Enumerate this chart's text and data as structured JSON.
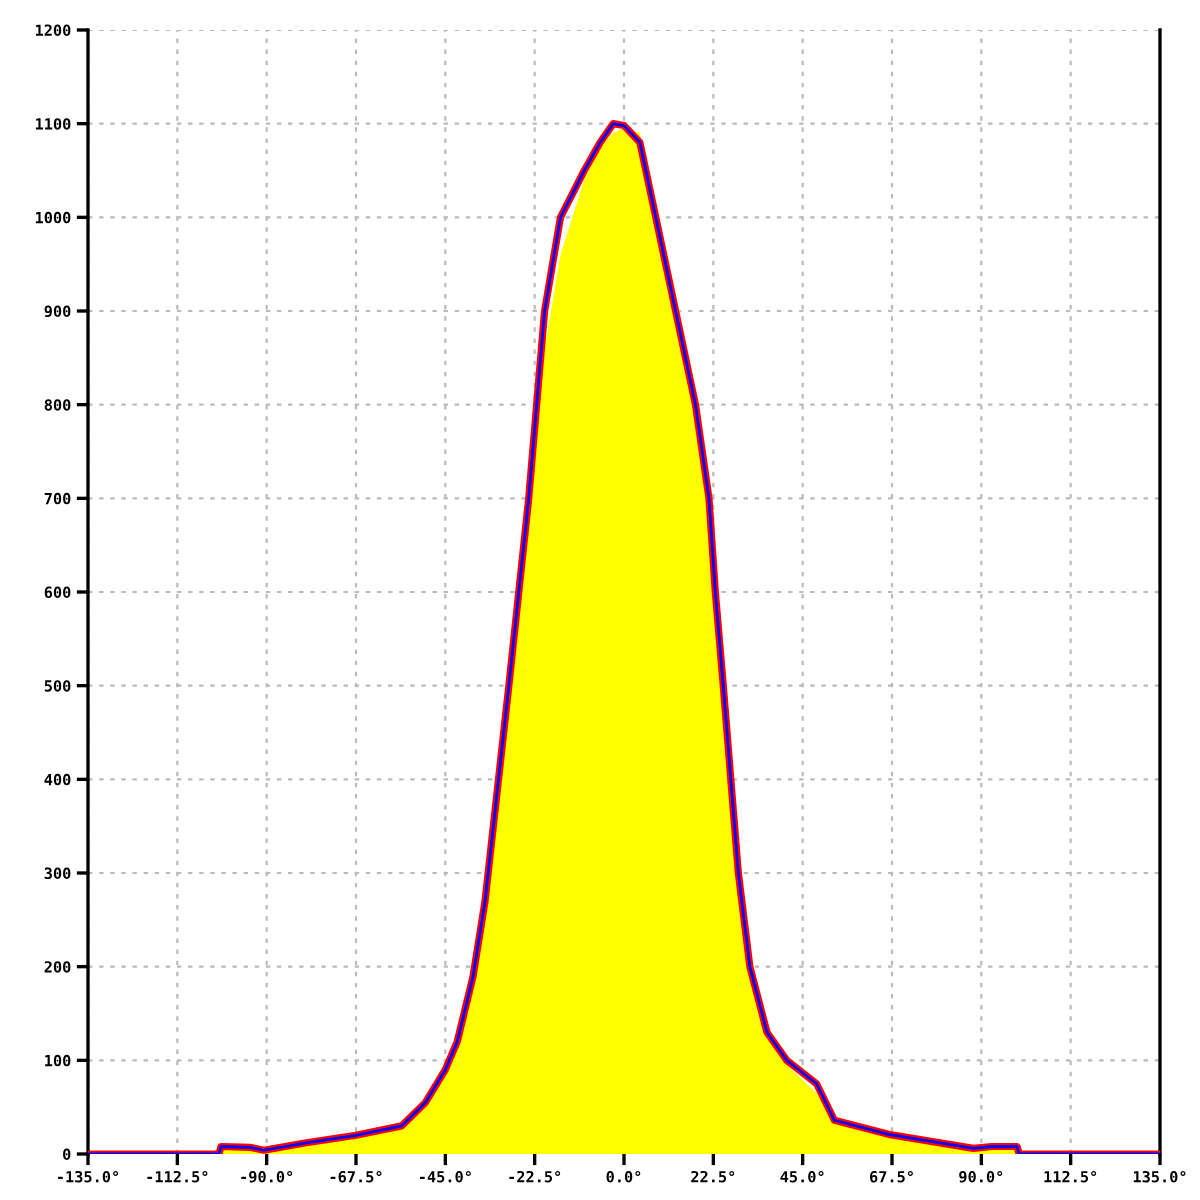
{
  "chart_data": {
    "type": "line",
    "x": [
      -135,
      -102,
      -101.5,
      -94,
      -90.7,
      -80,
      -67.5,
      -56,
      -50,
      -45,
      -42,
      -38,
      -35,
      -29,
      -24,
      -20,
      -16,
      -10,
      -6,
      -2.7,
      0,
      4,
      8,
      13,
      18,
      21.4,
      23,
      25,
      28.8,
      31.7,
      36,
      41,
      48.5,
      53,
      66.6,
      88,
      92.7,
      99,
      99.5,
      135
    ],
    "series": [
      {
        "type": "area",
        "color": "#ffff00",
        "values": [
          0,
          0,
          8,
          7,
          4,
          12,
          20,
          30,
          55,
          90,
          120,
          190,
          270,
          480,
          680,
          860,
          960,
          1040,
          1075,
          1090,
          1095,
          1090,
          1000,
          900,
          800,
          700,
          600,
          500,
          300,
          200,
          130,
          95,
          65,
          36,
          21,
          6,
          8,
          8,
          0,
          0
        ]
      },
      {
        "type": "line",
        "color": "#0000ff",
        "values": [
          0,
          0,
          8,
          7,
          4,
          12,
          20,
          30,
          55,
          90,
          120,
          190,
          270,
          500,
          700,
          900,
          1000,
          1050,
          1080,
          1100,
          1098,
          1080,
          1000,
          900,
          800,
          700,
          600,
          500,
          300,
          200,
          130,
          100,
          75,
          36,
          21,
          6,
          8,
          8,
          0,
          0
        ]
      },
      {
        "type": "line",
        "color": "#ff0000",
        "values": [
          0,
          0,
          8,
          7,
          4,
          12,
          20,
          30,
          55,
          90,
          120,
          190,
          270,
          500,
          700,
          900,
          1000,
          1050,
          1080,
          1100,
          1098,
          1080,
          1000,
          900,
          800,
          700,
          600,
          500,
          300,
          200,
          130,
          100,
          75,
          36,
          21,
          6,
          8,
          8,
          0,
          0
        ]
      }
    ],
    "xlim": [
      -135,
      135
    ],
    "ylim": [
      0,
      1200
    ],
    "xticks": [
      {
        "value": -135,
        "label": "-135.0°"
      },
      {
        "value": -112.5,
        "label": "-112.5°"
      },
      {
        "value": -90,
        "label": "-90.0°"
      },
      {
        "value": -67.5,
        "label": "-67.5°"
      },
      {
        "value": -45,
        "label": "-45.0°"
      },
      {
        "value": -22.5,
        "label": "-22.5°"
      },
      {
        "value": 0,
        "label": "0.0°"
      },
      {
        "value": 22.5,
        "label": "22.5°"
      },
      {
        "value": 45,
        "label": "45.0°"
      },
      {
        "value": 67.5,
        "label": "67.5°"
      },
      {
        "value": 90,
        "label": "90.0°"
      },
      {
        "value": 112.5,
        "label": "112.5°"
      },
      {
        "value": 135,
        "label": "135.0°"
      }
    ],
    "yticks": [
      0,
      100,
      200,
      300,
      400,
      500,
      600,
      700,
      800,
      900,
      1000,
      1100,
      1200
    ],
    "grid": true,
    "legend": false
  }
}
